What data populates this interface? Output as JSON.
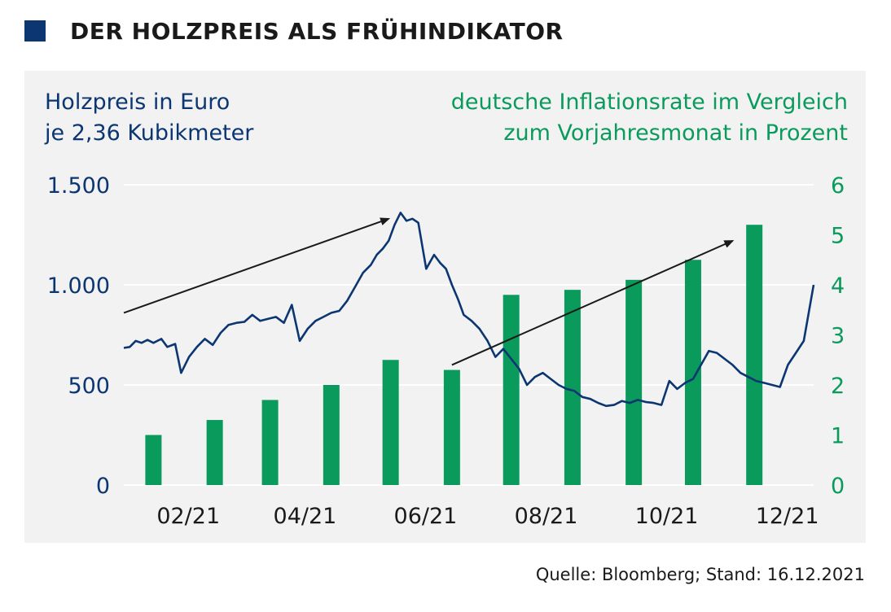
{
  "header": {
    "title": "DER HOLZPREIS ALS FRÜHINDIKATOR"
  },
  "source": "Quelle: Bloomberg; Stand: 16.12.2021",
  "colors": {
    "line": "#0c3672",
    "bars": "#0a9a5c",
    "panel": "#f2f2f2",
    "square": "#0c3672"
  },
  "chart_data": {
    "type": "bar+line",
    "left_axis_title": [
      "Holzpreis in Euro",
      "je 2,36 Kubikmeter"
    ],
    "right_axis_title": [
      "deutsche Inflationsrate im Vergleich",
      "zum Vorjahresmonat in Prozent"
    ],
    "left_axis": {
      "min": 0,
      "max": 1500,
      "ticks": [
        0,
        500,
        1000,
        1500
      ],
      "tick_labels": [
        "0",
        "500",
        "1.000",
        "1.500"
      ]
    },
    "right_axis": {
      "min": 0,
      "max": 6,
      "ticks": [
        0,
        1,
        2,
        3,
        4,
        5,
        6
      ],
      "tick_labels": [
        "0",
        "1",
        "2",
        "3",
        "4",
        "5",
        "6"
      ]
    },
    "x_axis": {
      "ticks": [
        "2021-02-01",
        "2021-04-01",
        "2021-06-01",
        "2021-08-01",
        "2021-10-01",
        "2021-12-01"
      ],
      "tick_labels": [
        "02/21",
        "04/21",
        "06/21",
        "08/21",
        "10/21",
        "12/21"
      ],
      "start": "2021-01-01",
      "end": "2021-12-16"
    },
    "grid": "horizontal",
    "bars": {
      "categories": [
        "2021-01",
        "2021-02",
        "2021-03",
        "2021-04",
        "2021-05",
        "2021-06",
        "2021-07",
        "2021-08",
        "2021-09",
        "2021-10",
        "2021-11"
      ],
      "values": [
        1.0,
        1.3,
        1.7,
        2.0,
        2.5,
        2.3,
        3.8,
        3.9,
        4.1,
        4.5,
        5.2
      ]
    },
    "line": {
      "x": [
        "2021-01-01",
        "2021-01-04",
        "2021-01-07",
        "2021-01-10",
        "2021-01-13",
        "2021-01-16",
        "2021-01-20",
        "2021-01-23",
        "2021-01-27",
        "2021-01-30",
        "2021-02-03",
        "2021-02-07",
        "2021-02-11",
        "2021-02-15",
        "2021-02-19",
        "2021-02-23",
        "2021-02-27",
        "2021-03-03",
        "2021-03-07",
        "2021-03-11",
        "2021-03-15",
        "2021-03-19",
        "2021-03-23",
        "2021-03-27",
        "2021-03-31",
        "2021-04-04",
        "2021-04-08",
        "2021-04-12",
        "2021-04-16",
        "2021-04-20",
        "2021-04-24",
        "2021-04-28",
        "2021-05-02",
        "2021-05-06",
        "2021-05-09",
        "2021-05-12",
        "2021-05-15",
        "2021-05-18",
        "2021-05-21",
        "2021-05-24",
        "2021-05-27",
        "2021-05-30",
        "2021-06-03",
        "2021-06-07",
        "2021-06-10",
        "2021-06-13",
        "2021-06-16",
        "2021-06-19",
        "2021-06-22",
        "2021-06-26",
        "2021-06-30",
        "2021-07-04",
        "2021-07-08",
        "2021-07-12",
        "2021-07-16",
        "2021-07-20",
        "2021-07-24",
        "2021-07-28",
        "2021-08-01",
        "2021-08-05",
        "2021-08-09",
        "2021-08-13",
        "2021-08-17",
        "2021-08-21",
        "2021-08-25",
        "2021-08-29",
        "2021-09-02",
        "2021-09-06",
        "2021-09-10",
        "2021-09-14",
        "2021-09-18",
        "2021-09-22",
        "2021-09-26",
        "2021-09-30",
        "2021-10-04",
        "2021-10-08",
        "2021-10-12",
        "2021-10-16",
        "2021-10-20",
        "2021-10-24",
        "2021-10-28",
        "2021-11-01",
        "2021-11-05",
        "2021-11-09",
        "2021-11-13",
        "2021-11-17",
        "2021-11-21",
        "2021-11-25",
        "2021-11-29",
        "2021-12-03",
        "2021-12-07",
        "2021-12-11",
        "2021-12-16"
      ],
      "y": [
        685,
        690,
        720,
        710,
        725,
        710,
        730,
        690,
        705,
        560,
        640,
        690,
        730,
        700,
        760,
        800,
        810,
        815,
        850,
        820,
        830,
        840,
        810,
        900,
        720,
        780,
        820,
        840,
        860,
        870,
        920,
        990,
        1060,
        1100,
        1150,
        1180,
        1220,
        1300,
        1360,
        1320,
        1330,
        1310,
        1080,
        1150,
        1110,
        1080,
        1000,
        930,
        850,
        820,
        780,
        720,
        640,
        680,
        630,
        580,
        500,
        540,
        560,
        530,
        500,
        480,
        470,
        440,
        430,
        410,
        395,
        400,
        420,
        410,
        425,
        415,
        410,
        400,
        520,
        480,
        510,
        530,
        600,
        670,
        660,
        630,
        600,
        560,
        540,
        520,
        510,
        500,
        490,
        600,
        660,
        720,
        1000
      ]
    },
    "arrows": [
      {
        "from": [
          "2021-01-01",
          860
        ],
        "to": [
          "2021-05-15",
          1330
        ]
      },
      {
        "from": [
          "2021-06-16",
          600
        ],
        "to": [
          "2021-11-05",
          1220
        ]
      }
    ]
  }
}
